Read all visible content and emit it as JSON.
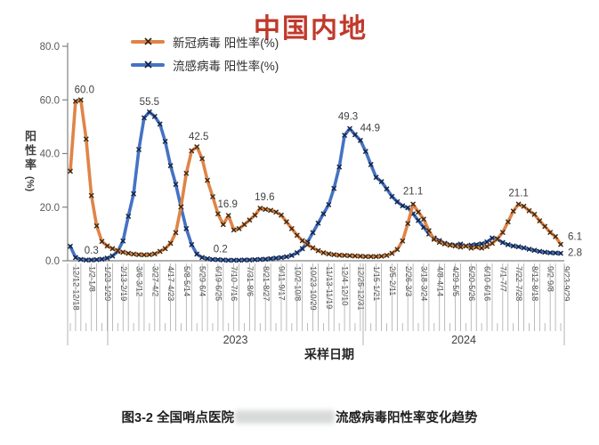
{
  "title": "中国内地",
  "title_color": "#C0392B",
  "y_axis": {
    "title": "阳性率",
    "unit": "(%)",
    "tick_labels": [
      "0.0",
      "20.0",
      "40.0",
      "60.0",
      "80.0"
    ]
  },
  "x_axis": {
    "title": "采样日期",
    "year_groups": [
      {
        "label": "2023",
        "x_from": 121,
        "x_to": 408
      },
      {
        "label": "2024",
        "x_from": 408,
        "x_to": 634
      }
    ],
    "extra_boundary_x": 76
  },
  "caption": {
    "prefix": "图3-2 全国哨点医院",
    "suffix": "流感病毒阳性率变化趋势",
    "middle_redacted": true
  },
  "chart_data": {
    "type": "line",
    "x_title": "采样日期",
    "y_title": "阳性率(%)",
    "ylim": [
      0,
      80
    ],
    "label_interval": 3,
    "x_labels": [
      "12/12-12/18",
      "1/2-1/8",
      "1/23-1/29",
      "2/13-2/19",
      "3/6-3/12",
      "3/27-4/2",
      "4/17-4/23",
      "5/8-5/14",
      "5/29-6/4",
      "6/19-6/25",
      "7/10-7/16",
      "7/31-8/6",
      "8/21-8/27",
      "9/11-9/17",
      "10/2-10/8",
      "10/23-10/29",
      "11/13-11/19",
      "12/4-12/10",
      "12/25-12/31",
      "1/15-1/21",
      "2/5-2/11",
      "2/26-3/3",
      "3/18-3/24",
      "4/8-4/14",
      "4/29-5/5",
      "5/20-5/26",
      "6/10-6/16",
      "7/1-7/7",
      "7/22-7/28",
      "8/12-8/18",
      "9/2-9/8",
      "9/23-9/29"
    ],
    "years": [
      "2023",
      "2024"
    ],
    "series": [
      {
        "name": "新冠病毒 阳性率(%)",
        "color": "#E08447",
        "marker_color": "#3A2A14",
        "values": [
          33.4,
          59.5,
          60.0,
          45.4,
          24.3,
          13.0,
          7.2,
          5.5,
          4.5,
          3.8,
          3.2,
          2.8,
          2.5,
          2.3,
          2.2,
          2.3,
          2.6,
          3.5,
          4.5,
          6.5,
          10.5,
          20.1,
          32.6,
          41.0,
          42.5,
          38.1,
          30.0,
          23.9,
          17.5,
          13.5,
          16.9,
          11.5,
          12.0,
          13.5,
          15.2,
          17.0,
          19.6,
          19.2,
          18.8,
          18.2,
          17.0,
          14.5,
          12.0,
          9.5,
          7.5,
          6.0,
          4.8,
          3.8,
          3.0,
          2.6,
          2.3,
          2.1,
          2.0,
          1.9,
          1.8,
          1.7,
          1.6,
          1.6,
          1.6,
          1.7,
          2.0,
          2.8,
          4.2,
          7.4,
          13.9,
          21.1,
          18.2,
          15.5,
          11.2,
          8.0,
          6.9,
          6.3,
          5.8,
          5.5,
          5.1,
          5.5,
          4.7,
          5.1,
          4.7,
          5.3,
          6.5,
          8.2,
          10.6,
          14.5,
          18.5,
          21.1,
          20.3,
          18.7,
          17.3,
          14.9,
          12.8,
          10.6,
          9.0,
          6.1
        ],
        "point_labels": [
          {
            "index": 2,
            "text": "60.0",
            "dx": 4,
            "dy": -8
          },
          {
            "index": 24,
            "text": "42.5",
            "dx": 2,
            "dy": -8
          },
          {
            "index": 30,
            "text": "16.9",
            "dx": -1,
            "dy": -9
          },
          {
            "index": 36,
            "text": "19.6",
            "dx": 5,
            "dy": -9
          },
          {
            "index": 65,
            "text": "21.1",
            "dx": 0,
            "dy": -11
          },
          {
            "index": 85,
            "text": "21.1",
            "dx": 0,
            "dy": -9
          },
          {
            "index": 93,
            "text": "6.1",
            "dx": 16,
            "dy": -5
          }
        ]
      },
      {
        "name": "流感病毒 阳性率(%)",
        "color": "#4472C4",
        "marker_color": "#16233F",
        "values": [
          5.4,
          1.2,
          0.5,
          0.3,
          0.3,
          0.4,
          0.6,
          1.0,
          1.8,
          3.5,
          7.4,
          16.6,
          25.0,
          41.5,
          53.3,
          55.5,
          53.8,
          51.0,
          44.5,
          35.5,
          28.5,
          20.0,
          12.0,
          6.0,
          2.5,
          1.2,
          0.8,
          0.5,
          0.4,
          0.3,
          0.2,
          0.2,
          0.2,
          0.3,
          0.3,
          0.4,
          0.5,
          0.6,
          0.8,
          1.0,
          1.2,
          1.5,
          2.0,
          3.0,
          4.5,
          7.0,
          10.5,
          14.0,
          17.5,
          20.9,
          27.0,
          35.0,
          46.8,
          49.3,
          47.0,
          44.9,
          40.8,
          35.9,
          31.1,
          29.5,
          26.8,
          24.0,
          22.0,
          20.5,
          19.8,
          17.5,
          15.0,
          12.5,
          10.0,
          8.5,
          7.5,
          6.5,
          6.0,
          5.8,
          6.2,
          5.5,
          5.8,
          6.0,
          6.3,
          7.0,
          8.5,
          8.0,
          6.8,
          6.0,
          5.5,
          5.2,
          4.8,
          4.3,
          3.9,
          3.5,
          3.2,
          3.0,
          2.9,
          2.8
        ],
        "point_labels": [
          {
            "index": 3,
            "text": "0.3",
            "dx": 6,
            "dy": -7
          },
          {
            "index": 15,
            "text": "55.5",
            "dx": 0,
            "dy": -8
          },
          {
            "index": 30,
            "text": "0.2",
            "dx": -9,
            "dy": -9
          },
          {
            "index": 53,
            "text": "49.3",
            "dx": -2,
            "dy": -10
          },
          {
            "index": 55,
            "text": "44.9",
            "dx": 11,
            "dy": -10
          },
          {
            "index": 93,
            "text": "2.8",
            "dx": 16,
            "dy": 3
          }
        ]
      }
    ]
  }
}
